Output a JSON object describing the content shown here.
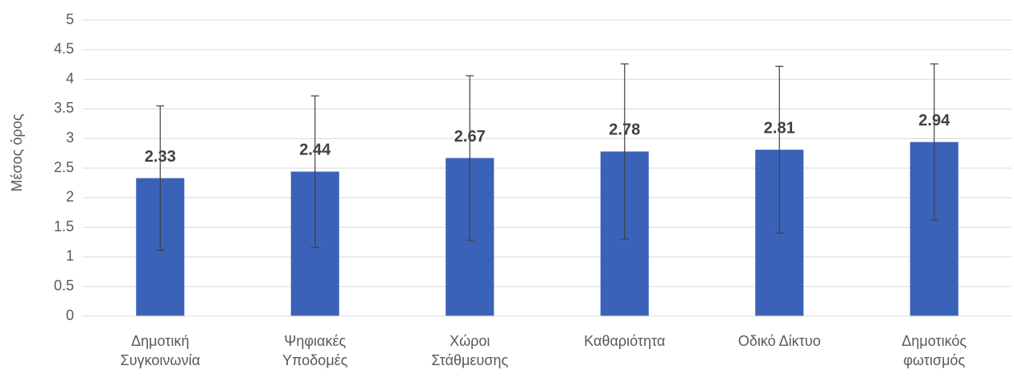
{
  "chart_data": {
    "type": "bar",
    "y_label": "Μέσος όρος",
    "categories": [
      "Δημοτική Συγκοινωνία",
      "Ψηφιακές Υποδομές",
      "Χώροι Στάθμευσης",
      "Καθαριότητα",
      "Οδικό Δίκτυο",
      "Δημοτικός φωτισμός"
    ],
    "values": [
      2.33,
      2.44,
      2.67,
      2.78,
      2.81,
      2.94
    ],
    "errors": [
      1.22,
      1.28,
      1.39,
      1.48,
      1.41,
      1.32
    ],
    "color": "#3a62b8",
    "ylim": [
      0,
      5
    ],
    "yticks": [
      0,
      0.5,
      1,
      1.5,
      2,
      2.5,
      3,
      3.5,
      4,
      4.5,
      5
    ],
    "grid": true
  }
}
